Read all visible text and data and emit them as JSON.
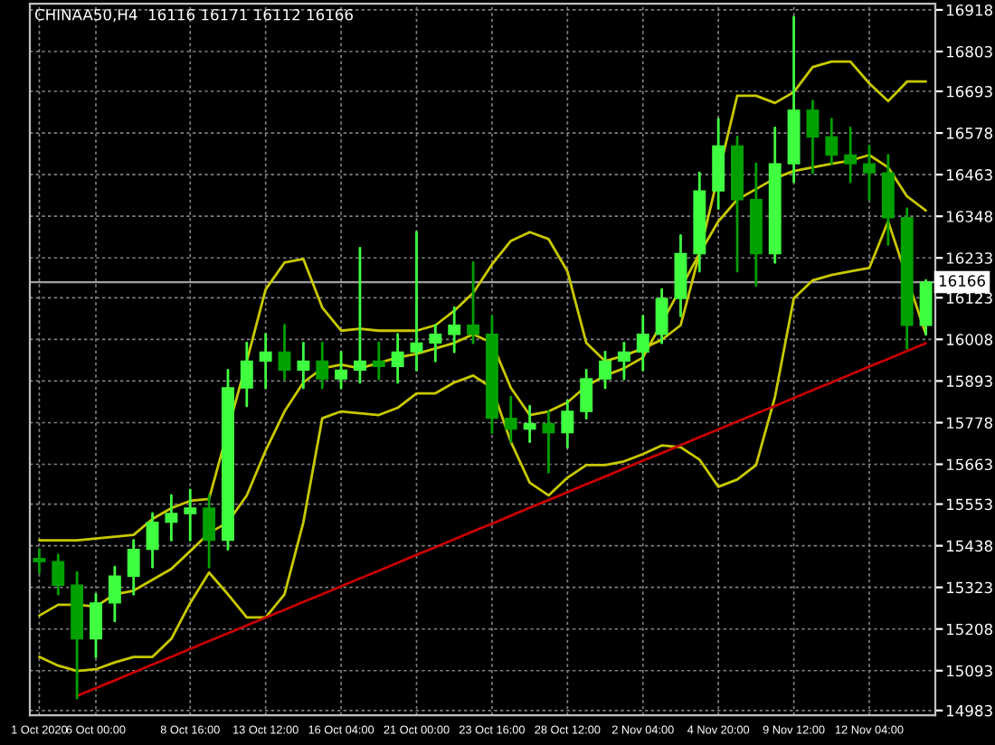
{
  "chart_data": {
    "type": "candlestick",
    "title": "CHINAA50,H4  16116 16171 16112 16166",
    "categories": [
      "1 Oct 2020",
      null,
      null,
      "6 Oct 00:00",
      null,
      null,
      null,
      null,
      "8 Oct 16:00",
      null,
      null,
      null,
      "13 Oct 12:00",
      null,
      null,
      null,
      "16 Oct 04:00",
      null,
      null,
      null,
      "21 Oct 00:00",
      null,
      null,
      null,
      "23 Oct 16:00",
      null,
      null,
      null,
      "28 Oct 12:00",
      null,
      null,
      null,
      "2 Nov 04:00",
      null,
      null,
      null,
      "4 Nov 20:00",
      null,
      null,
      null,
      "9 Nov 12:00",
      null,
      null,
      null,
      "12 Nov 04:00",
      null,
      null,
      null
    ],
    "ohlc": [
      [
        15403,
        15428,
        15364,
        15394
      ],
      [
        15394,
        15413,
        15304,
        15329
      ],
      [
        15329,
        15364,
        15017,
        15181
      ],
      [
        15181,
        15304,
        15131,
        15280
      ],
      [
        15280,
        15379,
        15230,
        15354
      ],
      [
        15354,
        15453,
        15304,
        15428
      ],
      [
        15428,
        15527,
        15379,
        15503
      ],
      [
        15503,
        15577,
        15453,
        15527
      ],
      [
        15527,
        15592,
        15453,
        15542
      ],
      [
        15542,
        15577,
        15379,
        15453
      ],
      [
        15453,
        15923,
        15428,
        15874
      ],
      [
        15874,
        15998,
        15824,
        15948
      ],
      [
        15948,
        16022,
        15874,
        15973
      ],
      [
        15973,
        16047,
        15899,
        15923
      ],
      [
        15923,
        15998,
        15874,
        15948
      ],
      [
        15948,
        15998,
        15874,
        15899
      ],
      [
        15899,
        15973,
        15874,
        15923
      ],
      [
        15923,
        16260,
        15889,
        15948
      ],
      [
        15948,
        15998,
        15899,
        15933
      ],
      [
        15933,
        16022,
        15889,
        15973
      ],
      [
        15973,
        16304,
        15923,
        15998
      ],
      [
        15998,
        16047,
        15948,
        16022
      ],
      [
        16022,
        16096,
        15973,
        16047
      ],
      [
        16047,
        16220,
        15998,
        16022
      ],
      [
        16022,
        16072,
        15750,
        15790
      ],
      [
        15790,
        15849,
        15725,
        15760
      ],
      [
        15760,
        15824,
        15725,
        15775
      ],
      [
        15775,
        15809,
        15641,
        15750
      ],
      [
        15750,
        15839,
        15710,
        15809
      ],
      [
        15809,
        15923,
        15790,
        15899
      ],
      [
        15899,
        15973,
        15874,
        15948
      ],
      [
        15948,
        15998,
        15899,
        15973
      ],
      [
        15973,
        16072,
        15923,
        16022
      ],
      [
        16022,
        16146,
        15998,
        16121
      ],
      [
        16121,
        16295,
        16072,
        16245
      ],
      [
        16245,
        16468,
        16196,
        16418
      ],
      [
        16418,
        16616,
        16369,
        16542
      ],
      [
        16542,
        16567,
        16196,
        16394
      ],
      [
        16394,
        16493,
        16156,
        16245
      ],
      [
        16245,
        16592,
        16220,
        16493
      ],
      [
        16493,
        16898,
        16443,
        16641
      ],
      [
        16641,
        16666,
        16468,
        16567
      ],
      [
        16567,
        16616,
        16493,
        16517
      ],
      [
        16517,
        16592,
        16443,
        16493
      ],
      [
        16493,
        16542,
        16394,
        16468
      ],
      [
        16468,
        16517,
        16270,
        16344
      ],
      [
        16344,
        16369,
        15983,
        16047
      ],
      [
        16047,
        16171,
        16022,
        16166
      ]
    ],
    "colors": [
      "#00a000",
      "#00a000",
      "#00a000",
      "#40ff40",
      "#40ff40",
      "#40ff40",
      "#40ff40",
      "#40ff40",
      "#40ff40",
      "#00a000",
      "#40ff40",
      "#40ff40",
      "#40ff40",
      "#00a000",
      "#40ff40",
      "#00a000",
      "#40ff40",
      "#40ff40",
      "#00a000",
      "#40ff40",
      "#40ff40",
      "#40ff40",
      "#40ff40",
      "#00a000",
      "#00a000",
      "#00a000",
      "#40ff40",
      "#00a000",
      "#40ff40",
      "#40ff40",
      "#40ff40",
      "#40ff40",
      "#40ff40",
      "#40ff40",
      "#40ff40",
      "#40ff40",
      "#40ff40",
      "#00a000",
      "#00a000",
      "#40ff40",
      "#40ff40",
      "#00a000",
      "#00a000",
      "#00a000",
      "#00a000",
      "#00a000",
      "#00a000",
      "#40ff40"
    ],
    "series": [
      {
        "type": "line",
        "color": "#c8c800",
        "values": [
          15453,
          15453,
          15453,
          15458,
          15463,
          15468,
          15512,
          15542,
          15562,
          15567,
          null,
          15948,
          16146,
          16220,
          16230,
          16096,
          16032,
          16037,
          16032,
          16032,
          16032,
          16047,
          16087,
          16136,
          16215,
          16280,
          16304,
          16285,
          16196,
          15998,
          15948,
          15963,
          15983,
          16007,
          16047,
          16245,
          null,
          16681,
          16681,
          16661,
          16691,
          16760,
          16775,
          16775,
          16715,
          16666,
          16720,
          16720
        ]
      },
      {
        "type": "line",
        "color": "#c8c800",
        "values": [
          15245,
          15275,
          15275,
          15270,
          15304,
          15314,
          15344,
          15374,
          15423,
          15473,
          15503,
          15577,
          15701,
          15809,
          15889,
          15928,
          15938,
          15928,
          15943,
          15958,
          15968,
          15983,
          15998,
          16022,
          15998,
          15874,
          15799,
          15809,
          15834,
          15879,
          15908,
          15928,
          15958,
          null,
          null,
          16245,
          16334,
          16394,
          16423,
          16453,
          16473,
          16483,
          16493,
          16502,
          16517,
          16483,
          16403,
          16364
        ]
      },
      {
        "type": "line",
        "color": "#c8c800",
        "values": [
          15131,
          15107,
          15092,
          15097,
          15116,
          15131,
          15131,
          15181,
          15280,
          15364,
          15304,
          15240,
          15240,
          15304,
          15503,
          15790,
          15809,
          15804,
          15799,
          15819,
          15859,
          15859,
          15889,
          15908,
          15874,
          15725,
          15612,
          15577,
          15626,
          15661,
          15661,
          15671,
          15691,
          15715,
          15710,
          15676,
          15601,
          15621,
          15661,
          15849,
          16121,
          16171,
          16186,
          16196,
          16205,
          16334,
          null,
          16022
        ]
      },
      {
        "type": "line",
        "color": "#c80000",
        "values": [
          null,
          null,
          15023,
          15045,
          15066,
          15088,
          15110,
          15131,
          15153,
          15175,
          15196,
          15218,
          15240,
          15261,
          15283,
          15304,
          15326,
          15348,
          15369,
          15391,
          15413,
          15434,
          15456,
          15478,
          15499,
          15521,
          15543,
          15564,
          15586,
          15608,
          15629,
          15651,
          15673,
          15694,
          15716,
          15738,
          15759,
          15781,
          15803,
          15824,
          15846,
          15868,
          15889,
          15911,
          15933,
          15954,
          15976,
          15997
        ]
      }
    ],
    "ref_lines": [
      {
        "axis": "y",
        "value": 16166,
        "label": "16166",
        "color": "#a0a0a0"
      }
    ],
    "ylim": [
      14970,
      16935
    ],
    "yticks": [
      14983,
      15093,
      15208,
      15323,
      15438,
      15553,
      15663,
      15778,
      15893,
      16008,
      16123,
      16233,
      16348,
      16463,
      16578,
      16693,
      16803,
      16918
    ],
    "grid": true,
    "legend": false,
    "marker": "none",
    "line_style": "solid"
  }
}
